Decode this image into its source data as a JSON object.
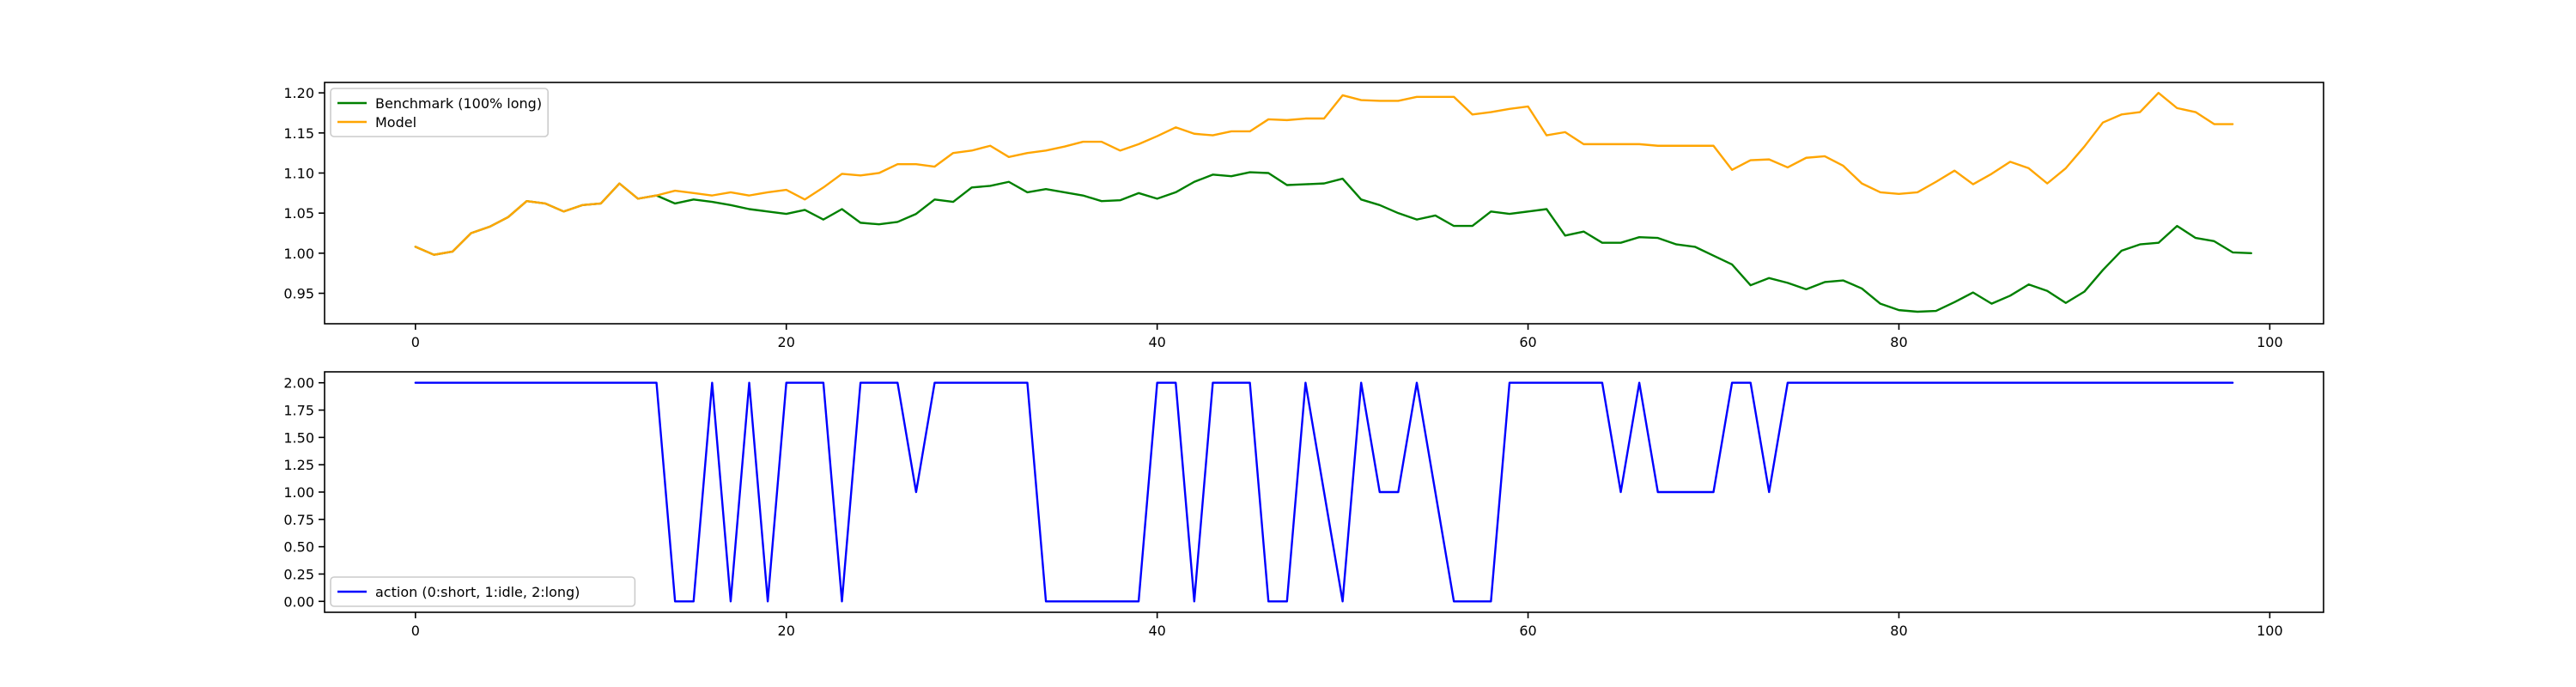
{
  "chart_data": [
    {
      "type": "line",
      "title": "",
      "xlabel": "",
      "ylabel": "",
      "xlim": [
        -4.9,
        102.9
      ],
      "ylim": [
        0.912,
        1.213
      ],
      "xticks": [
        0,
        20,
        40,
        60,
        80,
        100
      ],
      "xtick_labels": [
        "0",
        "20",
        "40",
        "60",
        "80",
        "100"
      ],
      "yticks": [
        0.95,
        1.0,
        1.05,
        1.1,
        1.15,
        1.2
      ],
      "ytick_labels": [
        "0.95",
        "1.00",
        "1.05",
        "1.10",
        "1.15",
        "1.20"
      ],
      "grid": false,
      "legend_position": "upper-left",
      "series": [
        {
          "name": "Benchmark (100% long)",
          "color": "#008000",
          "x_start": 0,
          "values": [
            1.008,
            0.998,
            1.002,
            1.025,
            1.033,
            1.045,
            1.065,
            1.062,
            1.052,
            1.06,
            1.062,
            1.087,
            1.068,
            1.072,
            1.062,
            1.067,
            1.064,
            1.06,
            1.055,
            1.052,
            1.049,
            1.054,
            1.042,
            1.055,
            1.038,
            1.036,
            1.039,
            1.049,
            1.067,
            1.064,
            1.082,
            1.084,
            1.089,
            1.076,
            1.08,
            1.076,
            1.072,
            1.065,
            1.066,
            1.075,
            1.068,
            1.076,
            1.089,
            1.098,
            1.096,
            1.101,
            1.1,
            1.085,
            1.086,
            1.087,
            1.093,
            1.067,
            1.06,
            1.05,
            1.042,
            1.047,
            1.034,
            1.034,
            1.052,
            1.049,
            1.052,
            1.055,
            1.022,
            1.027,
            1.013,
            1.013,
            1.02,
            1.019,
            1.011,
            1.008,
            0.997,
            0.986,
            0.96,
            0.969,
            0.963,
            0.955,
            0.964,
            0.966,
            0.956,
            0.937,
            0.929,
            0.927,
            0.928,
            0.939,
            0.951,
            0.937,
            0.947,
            0.961,
            0.953,
            0.938,
            0.952,
            0.979,
            1.003,
            1.011,
            1.013,
            1.034,
            1.019,
            1.015,
            1.001,
            1.0
          ]
        },
        {
          "name": "Model",
          "color": "#ffa500",
          "x_start": 0,
          "values": [
            1.008,
            0.998,
            1.002,
            1.025,
            1.033,
            1.045,
            1.065,
            1.062,
            1.052,
            1.06,
            1.062,
            1.087,
            1.068,
            1.072,
            1.078,
            1.075,
            1.072,
            1.076,
            1.072,
            1.076,
            1.079,
            1.067,
            1.082,
            1.099,
            1.097,
            1.1,
            1.111,
            1.111,
            1.108,
            1.125,
            1.128,
            1.134,
            1.12,
            1.125,
            1.128,
            1.133,
            1.139,
            1.139,
            1.128,
            1.136,
            1.146,
            1.157,
            1.149,
            1.147,
            1.152,
            1.152,
            1.167,
            1.166,
            1.168,
            1.168,
            1.197,
            1.191,
            1.19,
            1.19,
            1.195,
            1.195,
            1.195,
            1.173,
            1.176,
            1.18,
            1.183,
            1.147,
            1.151,
            1.136,
            1.136,
            1.136,
            1.136,
            1.134,
            1.134,
            1.134,
            1.134,
            1.104,
            1.116,
            1.117,
            1.107,
            1.119,
            1.121,
            1.109,
            1.087,
            1.076,
            1.074,
            1.076,
            1.089,
            1.103,
            1.086,
            1.099,
            1.114,
            1.106,
            1.087,
            1.106,
            1.133,
            1.163,
            1.173,
            1.176,
            1.2,
            1.181,
            1.176,
            1.161,
            1.161
          ]
        }
      ]
    },
    {
      "type": "line",
      "title": "",
      "xlabel": "",
      "ylabel": "",
      "xlim": [
        -4.9,
        102.9
      ],
      "ylim": [
        -0.1,
        2.1
      ],
      "xticks": [
        0,
        20,
        40,
        60,
        80,
        100
      ],
      "xtick_labels": [
        "0",
        "20",
        "40",
        "60",
        "80",
        "100"
      ],
      "yticks": [
        0.0,
        0.25,
        0.5,
        0.75,
        1.0,
        1.25,
        1.5,
        1.75,
        2.0
      ],
      "ytick_labels": [
        "0.00",
        "0.25",
        "0.50",
        "0.75",
        "1.00",
        "1.25",
        "1.50",
        "1.75",
        "2.00"
      ],
      "grid": false,
      "legend_position": "lower-left",
      "series": [
        {
          "name": "action (0:short, 1:idle, 2:long)",
          "color": "#0000ff",
          "x_start": 0,
          "values": [
            2,
            2,
            2,
            2,
            2,
            2,
            2,
            2,
            2,
            2,
            2,
            2,
            2,
            2,
            0,
            0,
            2,
            0,
            2,
            0,
            2,
            2,
            2,
            0,
            2,
            2,
            2,
            1,
            2,
            2,
            2,
            2,
            2,
            2,
            0,
            0,
            0,
            0,
            0,
            0,
            2,
            2,
            0,
            2,
            2,
            2,
            0,
            0,
            2,
            1,
            0,
            2,
            1,
            1,
            2,
            1,
            0,
            0,
            0,
            2,
            2,
            2,
            2,
            2,
            2,
            1,
            2,
            1,
            1,
            1,
            1,
            2,
            2,
            1,
            2,
            2,
            2,
            2,
            2,
            2,
            2,
            2,
            2,
            2,
            2,
            2,
            2,
            2,
            2,
            2,
            2,
            2,
            2,
            2,
            2,
            2,
            2,
            2,
            2
          ]
        }
      ]
    }
  ]
}
